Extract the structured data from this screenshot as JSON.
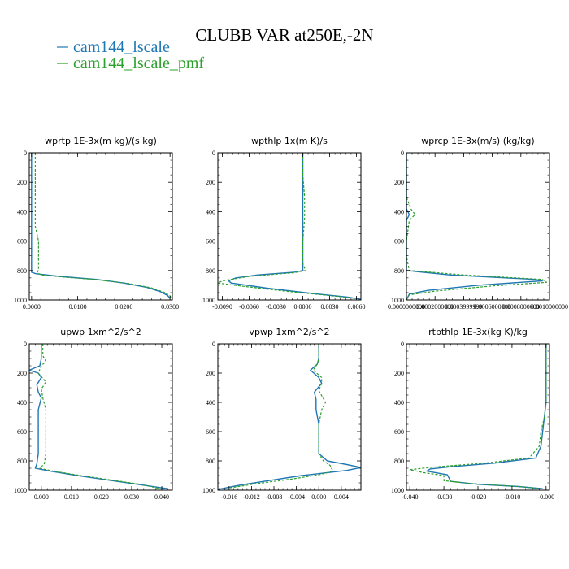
{
  "title": "CLUBB VAR at250E,-2N",
  "legend": [
    {
      "name": "cam144_lscale",
      "color": "#1f77b4"
    },
    {
      "name": "cam144_lscale_pmf",
      "color": "#2ca02c"
    }
  ],
  "chart_data": [
    {
      "type": "line",
      "title": "wprtp  1E-3x(m kg)/(s kg)",
      "xlim": [
        -0.0005,
        0.0305
      ],
      "ylim": [
        1000,
        0
      ],
      "xticks": [
        0.0,
        0.01,
        0.02,
        0.03
      ],
      "xticklabels": [
        "0.0000",
        "0.0100",
        "0.0200",
        "0.0300"
      ],
      "yticks": [
        0,
        200,
        400,
        600,
        800,
        1000
      ],
      "series": [
        {
          "name": "cam144_lscale",
          "points": [
            [
              0.0,
              0
            ],
            [
              0.0,
              200
            ],
            [
              0.0,
              400
            ],
            [
              0.0,
              600
            ],
            [
              0.0,
              700
            ],
            [
              0.0,
              790
            ],
            [
              0.0,
              812
            ],
            [
              0.001,
              822
            ],
            [
              0.006,
              840
            ],
            [
              0.014,
              860
            ],
            [
              0.02,
              885
            ],
            [
              0.025,
              915
            ],
            [
              0.028,
              945
            ],
            [
              0.0295,
              970
            ],
            [
              0.03,
              990
            ]
          ]
        },
        {
          "name": "cam144_lscale_pmf",
          "points": [
            [
              0.0008,
              0
            ],
            [
              0.0008,
              200
            ],
            [
              0.0008,
              400
            ],
            [
              0.0008,
              500
            ],
            [
              0.0015,
              600
            ],
            [
              0.0015,
              700
            ],
            [
              0.0015,
              795
            ],
            [
              0.0012,
              815
            ],
            [
              0.002,
              830
            ],
            [
              0.007,
              845
            ],
            [
              0.014,
              862
            ],
            [
              0.021,
              888
            ],
            [
              0.026,
              918
            ],
            [
              0.0288,
              948
            ],
            [
              0.03,
              972
            ],
            [
              0.0303,
              990
            ]
          ]
        }
      ]
    },
    {
      "type": "line",
      "title": "wpthlp  1x(m K)/s",
      "xlim": [
        -0.0095,
        0.0065
      ],
      "ylim": [
        1000,
        0
      ],
      "xticks": [
        -0.009,
        -0.006,
        -0.003,
        0.0,
        0.003,
        0.006
      ],
      "xticklabels": [
        "-0.0090",
        "-0.0060",
        "-0.0030",
        "0.0000",
        "0.0030",
        "0.0060"
      ],
      "yticks": [
        0,
        200,
        400,
        600,
        800,
        1000
      ],
      "series": [
        {
          "name": "cam144_lscale",
          "points": [
            [
              0.0,
              0
            ],
            [
              0.0,
              150
            ],
            [
              0.0,
              300
            ],
            [
              0.0,
              450
            ],
            [
              0.0,
              600
            ],
            [
              0.0,
              750
            ],
            [
              0.0,
              800
            ],
            [
              -0.001,
              812
            ],
            [
              -0.005,
              830
            ],
            [
              -0.0075,
              850
            ],
            [
              -0.0083,
              870
            ],
            [
              -0.008,
              885
            ],
            [
              -0.004,
              920
            ],
            [
              0.001,
              955
            ],
            [
              0.005,
              980
            ],
            [
              0.0065,
              995
            ]
          ]
        },
        {
          "name": "cam144_lscale_pmf",
          "points": [
            [
              0.0,
              0
            ],
            [
              0.0,
              150
            ],
            [
              0.0002,
              300
            ],
            [
              0.0002,
              450
            ],
            [
              0.0,
              600
            ],
            [
              0.0,
              750
            ],
            [
              0.0003,
              800
            ],
            [
              -0.001,
              815
            ],
            [
              -0.006,
              840
            ],
            [
              -0.009,
              870
            ],
            [
              -0.0095,
              885
            ],
            [
              -0.007,
              905
            ],
            [
              -0.002,
              940
            ],
            [
              0.003,
              970
            ],
            [
              0.006,
              990
            ]
          ]
        }
      ]
    },
    {
      "type": "line",
      "title": "wprcp  1E-3x(m/s) (kg/kg)",
      "xlim": [
        0.0,
        0.001
      ],
      "ylim": [
        1000,
        0
      ],
      "xticks": [
        0.0,
        0.0002,
        0.0004,
        0.0006,
        0.0008,
        0.001
      ],
      "xticklabels": [
        "0.0000000000",
        "0.0002000000",
        "0.0003999999",
        "0.0006000000",
        "0.0008000000",
        "0.0010000000"
      ],
      "yticks": [
        0,
        200,
        400,
        600,
        800,
        1000
      ],
      "series": [
        {
          "name": "cam144_lscale",
          "points": [
            [
              0.0,
              0
            ],
            [
              0.0,
              100
            ],
            [
              0.0,
              300
            ],
            [
              0.0,
              380
            ],
            [
              2e-05,
              420
            ],
            [
              0.0,
              460
            ],
            [
              0.0,
              600
            ],
            [
              0.0,
              700
            ],
            [
              0.0,
              800
            ],
            [
              0.0003,
              830
            ],
            [
              0.0009,
              860
            ],
            [
              0.00095,
              870
            ],
            [
              0.0005,
              900
            ],
            [
              0.00015,
              935
            ],
            [
              2e-05,
              960
            ],
            [
              0.0,
              1000
            ]
          ]
        },
        {
          "name": "cam144_lscale_pmf",
          "points": [
            [
              0.0,
              0
            ],
            [
              0.0,
              100
            ],
            [
              0.0,
              300
            ],
            [
              3e-05,
              380
            ],
            [
              6e-05,
              420
            ],
            [
              2e-05,
              460
            ],
            [
              0.0,
              600
            ],
            [
              0.0,
              700
            ],
            [
              2e-05,
              800
            ],
            [
              0.0004,
              830
            ],
            [
              0.00095,
              860
            ],
            [
              0.00098,
              880
            ],
            [
              0.0006,
              905
            ],
            [
              0.0002,
              940
            ],
            [
              2e-05,
              965
            ],
            [
              0.0,
              1000
            ]
          ]
        }
      ]
    },
    {
      "type": "line",
      "title": "upwp  1xm^2/s^2",
      "xlim": [
        -0.004,
        0.0435
      ],
      "ylim": [
        1000,
        0
      ],
      "xticks": [
        0.0,
        0.01,
        0.02,
        0.03,
        0.04
      ],
      "xticklabels": [
        "0.000",
        "0.010",
        "0.020",
        "0.030",
        "0.040"
      ],
      "yticks": [
        0,
        200,
        400,
        600,
        800,
        1000
      ],
      "series": [
        {
          "name": "cam144_lscale",
          "points": [
            [
              0.0,
              0
            ],
            [
              0.0,
              100
            ],
            [
              -0.0005,
              150
            ],
            [
              -0.004,
              180
            ],
            [
              -0.001,
              200
            ],
            [
              0.0,
              230
            ],
            [
              -0.0015,
              280
            ],
            [
              -0.001,
              330
            ],
            [
              0.0,
              370
            ],
            [
              -0.001,
              450
            ],
            [
              -0.001,
              600
            ],
            [
              -0.001,
              750
            ],
            [
              -0.0015,
              820
            ],
            [
              -0.002,
              850
            ],
            [
              0.003,
              870
            ],
            [
              0.012,
              900
            ],
            [
              0.022,
              930
            ],
            [
              0.032,
              960
            ],
            [
              0.042,
              990
            ]
          ]
        },
        {
          "name": "cam144_lscale_pmf",
          "points": [
            [
              0.0005,
              0
            ],
            [
              0.0005,
              80
            ],
            [
              0.0015,
              120
            ],
            [
              0.0,
              150
            ],
            [
              -0.001,
              200
            ],
            [
              0.0015,
              260
            ],
            [
              0.0,
              310
            ],
            [
              0.0005,
              370
            ],
            [
              0.0015,
              450
            ],
            [
              0.0015,
              600
            ],
            [
              0.0015,
              750
            ],
            [
              0.001,
              820
            ],
            [
              -0.0005,
              850
            ],
            [
              0.004,
              870
            ],
            [
              0.013,
              900
            ],
            [
              0.023,
              930
            ],
            [
              0.033,
              960
            ],
            [
              0.0395,
              990
            ]
          ]
        }
      ]
    },
    {
      "type": "line",
      "title": "vpwp  1xm^2/s^2",
      "xlim": [
        -0.018,
        0.0075
      ],
      "ylim": [
        1000,
        0
      ],
      "xticks": [
        -0.016,
        -0.012,
        -0.008,
        -0.004,
        0.0,
        0.004
      ],
      "xticklabels": [
        "-0.016",
        "-0.012",
        "-0.008",
        "-0.004",
        "0.000",
        "0.004"
      ],
      "yticks": [
        0,
        200,
        400,
        600,
        800,
        1000
      ],
      "series": [
        {
          "name": "cam144_lscale",
          "points": [
            [
              0.0,
              0
            ],
            [
              0.0,
              100
            ],
            [
              -0.0003,
              140
            ],
            [
              -0.0015,
              180
            ],
            [
              0.0,
              230
            ],
            [
              0.0005,
              270
            ],
            [
              -0.0008,
              330
            ],
            [
              -0.0005,
              380
            ],
            [
              -0.0005,
              450
            ],
            [
              0.0,
              550
            ],
            [
              0.0,
              650
            ],
            [
              0.0,
              750
            ],
            [
              0.0015,
              800
            ],
            [
              0.005,
              825
            ],
            [
              0.0075,
              845
            ],
            [
              0.005,
              865
            ],
            [
              -0.003,
              900
            ],
            [
              -0.009,
              935
            ],
            [
              -0.014,
              965
            ],
            [
              -0.018,
              995
            ]
          ]
        },
        {
          "name": "cam144_lscale_pmf",
          "points": [
            [
              0.0,
              0
            ],
            [
              0.0,
              100
            ],
            [
              -0.0003,
              140
            ],
            [
              -0.001,
              180
            ],
            [
              0.0005,
              230
            ],
            [
              0.0005,
              270
            ],
            [
              0.0,
              320
            ],
            [
              0.0012,
              400
            ],
            [
              0.0005,
              450
            ],
            [
              0.0,
              550
            ],
            [
              0.0,
              650
            ],
            [
              0.0,
              750
            ],
            [
              0.0008,
              800
            ],
            [
              0.002,
              830
            ],
            [
              0.0025,
              870
            ],
            [
              0.0,
              895
            ],
            [
              -0.005,
              925
            ],
            [
              -0.011,
              955
            ],
            [
              -0.016,
              985
            ]
          ]
        }
      ]
    },
    {
      "type": "line",
      "title": "rtpthlp  1E-3x(kg K)/kg",
      "xlim": [
        -0.041,
        0.001
      ],
      "ylim": [
        1000,
        0
      ],
      "xticks": [
        -0.04,
        -0.03,
        -0.02,
        -0.01,
        0.0
      ],
      "xticklabels": [
        "-0.040",
        "-0.030",
        "-0.020",
        "-0.010",
        "-0.000"
      ],
      "yticks": [
        0,
        200,
        400,
        600,
        800,
        1000
      ],
      "series": [
        {
          "name": "cam144_lscale",
          "points": [
            [
              0.0,
              0
            ],
            [
              0.0,
              200
            ],
            [
              0.0,
              400
            ],
            [
              -0.0005,
              500
            ],
            [
              -0.001,
              600
            ],
            [
              -0.0015,
              700
            ],
            [
              -0.003,
              780
            ],
            [
              -0.015,
              815
            ],
            [
              -0.028,
              840
            ],
            [
              -0.034,
              855
            ],
            [
              -0.035,
              870
            ],
            [
              -0.029,
              895
            ],
            [
              -0.028,
              940
            ],
            [
              -0.02,
              960
            ],
            [
              -0.008,
              975
            ],
            [
              -0.001,
              990
            ]
          ]
        },
        {
          "name": "cam144_lscale_pmf",
          "points": [
            [
              0.0,
              0
            ],
            [
              0.0,
              200
            ],
            [
              0.0,
              400
            ],
            [
              -0.0005,
              500
            ],
            [
              -0.0015,
              600
            ],
            [
              -0.002,
              700
            ],
            [
              -0.005,
              780
            ],
            [
              -0.018,
              815
            ],
            [
              -0.033,
              842
            ],
            [
              -0.04,
              860
            ],
            [
              -0.036,
              880
            ],
            [
              -0.03,
              900
            ],
            [
              -0.03,
              935
            ],
            [
              -0.022,
              955
            ],
            [
              -0.01,
              972
            ],
            [
              -0.002,
              988
            ]
          ]
        }
      ]
    }
  ]
}
